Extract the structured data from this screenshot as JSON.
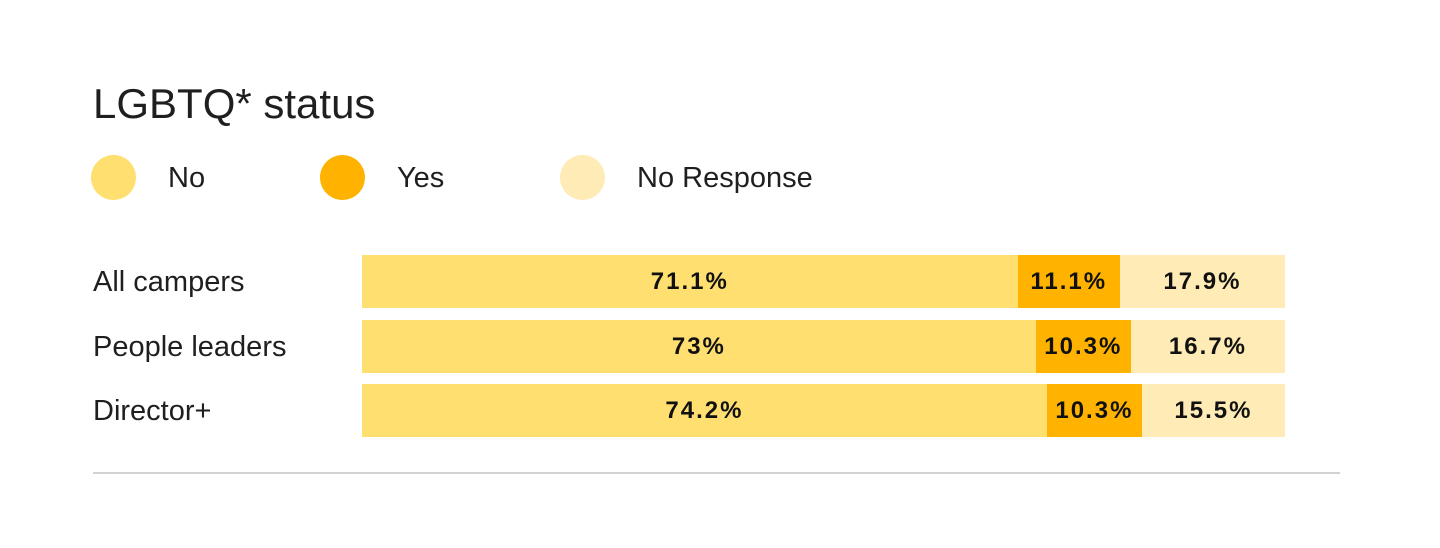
{
  "chart_data": {
    "type": "bar",
    "stacked": true,
    "orientation": "horizontal",
    "normalized": true,
    "title": "LGBTQ* status",
    "categories": [
      "All campers",
      "People leaders",
      "Director+"
    ],
    "series": [
      {
        "name": "No",
        "color": "#FFDF6F",
        "values": [
          71.1,
          73,
          74.2
        ],
        "labels": [
          "71.1%",
          "73%",
          "74.2%"
        ]
      },
      {
        "name": "Yes",
        "color": "#FFB300",
        "values": [
          11.1,
          10.3,
          10.3
        ],
        "labels": [
          "11.1%",
          "10.3%",
          "10.3%"
        ]
      },
      {
        "name": "No Response",
        "color": "#FFEBB5",
        "values": [
          17.9,
          16.7,
          15.5
        ],
        "labels": [
          "17.9%",
          "16.7%",
          "15.5%"
        ]
      }
    ],
    "legend": "top-left",
    "grid": false
  }
}
